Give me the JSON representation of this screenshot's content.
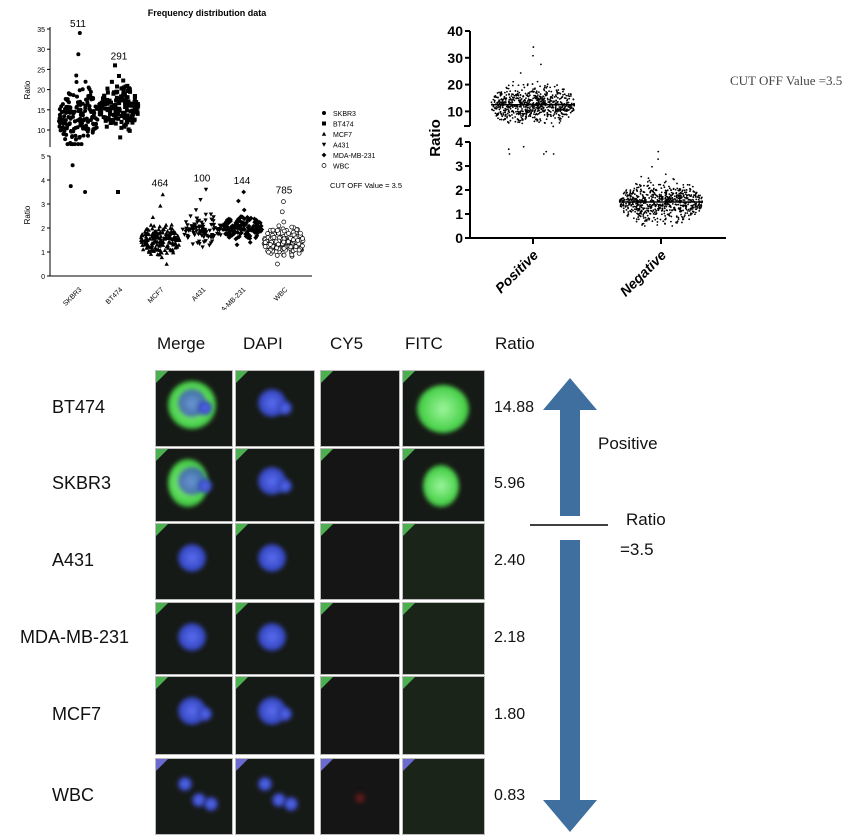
{
  "chart_data": [
    {
      "type": "scatter",
      "title": "Frequency distribution data",
      "ylabel": "Ratio",
      "y_axis_break": true,
      "ylim_upper": [
        5,
        35
      ],
      "ylim_lower": [
        0,
        5
      ],
      "yticks_upper": [
        10,
        15,
        20,
        25,
        30,
        35
      ],
      "yticks_lower": [
        0,
        1,
        2,
        3,
        4,
        5
      ],
      "categories": [
        "SKBR3",
        "BT474",
        "MCF7",
        "A431",
        "MDA-MB-231",
        "WBC"
      ],
      "counts": [
        "511",
        "291",
        "464",
        "100",
        "144",
        "785"
      ],
      "series": [
        {
          "name": "SKBR3",
          "marker": "circle",
          "min": 3.5,
          "max": 34,
          "median": 13
        },
        {
          "name": "BT474",
          "marker": "square",
          "min": 3.5,
          "max": 26,
          "median": 15.5
        },
        {
          "name": "MCF7",
          "marker": "triangle-up",
          "min": 0.5,
          "max": 3.4,
          "median": 1.5
        },
        {
          "name": "A431",
          "marker": "triangle-down",
          "min": 1.2,
          "max": 3.6,
          "median": 1.9
        },
        {
          "name": "MDA-MB-231",
          "marker": "diamond",
          "min": 1.3,
          "max": 3.5,
          "median": 2.0
        },
        {
          "name": "WBC",
          "marker": "open-circle",
          "min": 0.5,
          "max": 3.1,
          "median": 1.4
        }
      ],
      "legend": "right",
      "annotation": "CUT OFF Value = 3.5"
    },
    {
      "type": "scatter",
      "ylabel": "Ratio",
      "y_axis_break": true,
      "ylim_upper": [
        5,
        40
      ],
      "ylim_lower": [
        0,
        4
      ],
      "yticks_upper": [
        10,
        20,
        30,
        40
      ],
      "yticks_lower": [
        0,
        1,
        2,
        3,
        4
      ],
      "categories": [
        "Positive",
        "Negative"
      ],
      "series": [
        {
          "category": "Positive",
          "min": 3.5,
          "max": 34,
          "median": 12.5
        },
        {
          "category": "Negative",
          "min": 0.5,
          "max": 3.6,
          "median": 1.5
        }
      ],
      "annotation": "CUT OFF Value =3.5"
    }
  ],
  "panel": {
    "columns": [
      "Merge",
      "DAPI",
      "CY5",
      "FITC",
      "Ratio"
    ],
    "rows": [
      {
        "label": "BT474",
        "ratio": "14.88"
      },
      {
        "label": "SKBR3",
        "ratio": "5.96"
      },
      {
        "label": "A431",
        "ratio": "2.40"
      },
      {
        "label": "MDA-MB-231",
        "ratio": "2.18"
      },
      {
        "label": "MCF7",
        "ratio": "1.80"
      },
      {
        "label": "WBC",
        "ratio": "0.83"
      }
    ],
    "positive_label": "Positive",
    "ratio_label": "Ratio",
    "cutoff_label": "=3.5",
    "arrow_color": "#3e6f9e"
  }
}
